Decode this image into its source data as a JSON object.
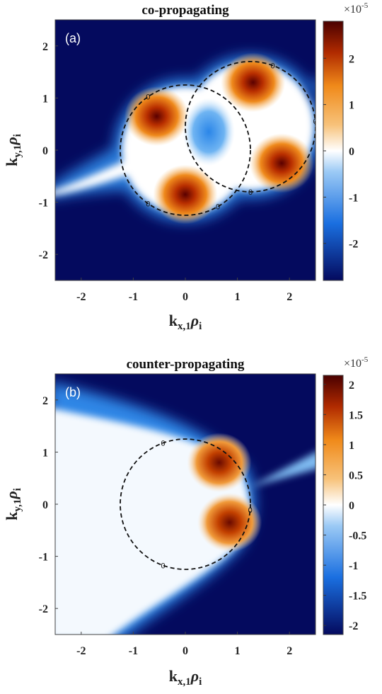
{
  "chart_data": [
    {
      "type": "heatmap",
      "panel_label": "(a)",
      "title": "co-propagating",
      "xlabel": {
        "main": "k",
        "sub": "x,1",
        "greek": "ρ",
        "greek_sub": "i"
      },
      "ylabel": {
        "main": "k",
        "sub": "y,1",
        "greek": "ρ",
        "greek_sub": "i"
      },
      "xlim": [
        -2.5,
        2.5
      ],
      "ylim": [
        -2.5,
        2.5
      ],
      "xticks": [
        -2,
        -1,
        0,
        1,
        2
      ],
      "yticks": [
        2,
        1,
        0,
        -1,
        -2
      ],
      "xtick_labels": [
        "-2",
        "-1",
        "0",
        "1",
        "2"
      ],
      "ytick_labels": [
        "2",
        "1",
        "0",
        "-1",
        "-2"
      ],
      "colorbar": {
        "exponent_label": "×10",
        "exponent_power": "-5",
        "range": [
          -2.8,
          2.8
        ],
        "ticks": [
          2,
          1,
          0,
          -1,
          -2
        ],
        "tick_labels": [
          "2",
          "1",
          "0",
          "-1",
          "-2"
        ]
      },
      "contours": [
        {
          "level": "0",
          "center": [
            0,
            0
          ],
          "radius": 1.25
        },
        {
          "level": "0",
          "center": [
            1.25,
            0.45
          ],
          "radius": 1.25
        }
      ],
      "contour_labels": [
        "0",
        "0",
        "0",
        "0",
        "0",
        "0"
      ],
      "lobes": [
        {
          "x": -0.55,
          "y": 0.65,
          "value": 2.8
        },
        {
          "x": 0.0,
          "y": -0.85,
          "value": 2.8
        },
        {
          "x": 1.3,
          "y": 1.3,
          "value": 2.8
        },
        {
          "x": 1.85,
          "y": -0.25,
          "value": 2.8
        },
        {
          "x": 0.45,
          "y": 0.35,
          "value": -1.2
        }
      ]
    },
    {
      "type": "heatmap",
      "panel_label": "(b)",
      "title": "counter-propagating",
      "xlabel": {
        "main": "k",
        "sub": "x,1",
        "greek": "ρ",
        "greek_sub": "i"
      },
      "ylabel": {
        "main": "k",
        "sub": "y,1",
        "greek": "ρ",
        "greek_sub": "i"
      },
      "xlim": [
        -2.5,
        2.5
      ],
      "ylim": [
        -2.5,
        2.5
      ],
      "xticks": [
        -2,
        -1,
        0,
        1,
        2
      ],
      "yticks": [
        2,
        1,
        0,
        -1,
        -2
      ],
      "xtick_labels": [
        "-2",
        "-1",
        "0",
        "1",
        "2"
      ],
      "ytick_labels": [
        "2",
        "1",
        "0",
        "-1",
        "-2"
      ],
      "colorbar": {
        "exponent_label": "×10",
        "exponent_power": "-5",
        "range": [
          -2.15,
          2.15
        ],
        "ticks": [
          2,
          1.5,
          1,
          0.5,
          0,
          -0.5,
          -1,
          -1.5,
          -2
        ],
        "tick_labels": [
          "2",
          "1.5",
          "1",
          "0.5",
          "0",
          "-0.5",
          "-1",
          "-1.5",
          "-2"
        ]
      },
      "contours": [
        {
          "level": "0",
          "center": [
            0,
            0
          ],
          "radius": 1.25
        }
      ],
      "contour_labels": [
        "0",
        "0",
        "0"
      ],
      "lobes": [
        {
          "x": 0.65,
          "y": 0.8,
          "value": 2.1
        },
        {
          "x": 0.85,
          "y": -0.35,
          "value": 2.1
        }
      ]
    }
  ],
  "colors": {
    "background_deep": "#040a5e",
    "negative_mid": "#1a6fe0",
    "zero": "#ffffff",
    "positive_mid": "#f08a1a",
    "positive_deep": "#4a0000",
    "contour": "#111111"
  }
}
